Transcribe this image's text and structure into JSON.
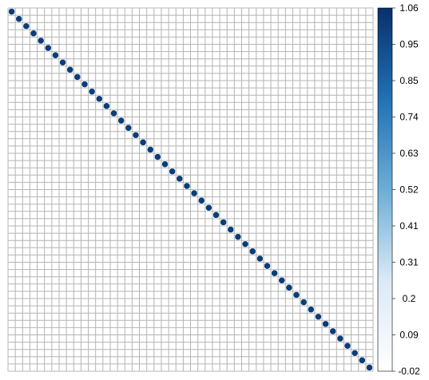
{
  "chart_data": {
    "type": "heatmap",
    "subtype": "correlation-matrix (circle glyphs)",
    "n_variables": 50,
    "matrix_description": "identity-like: diagonal cells = 1, all off-diagonal cells ≈ 0 (not drawn)",
    "diagonal_value": 1.0,
    "off_diagonal_value": 0.0,
    "grid": true,
    "colorbar": {
      "position": "right",
      "min": -0.02,
      "max": 1.06,
      "tick_labels": [
        "1.06",
        "0.95",
        "0.85",
        "0.74",
        "0.63",
        "0.52",
        "0.41",
        "0.31",
        "0.2",
        "0.09",
        "-0.02"
      ],
      "colors": {
        "low": "#ffffff",
        "mid": "#5aa0cf",
        "high": "#08306b",
        "diagonal_fill": "#0b3d79",
        "grid_line": "#b4b4b4"
      }
    }
  }
}
